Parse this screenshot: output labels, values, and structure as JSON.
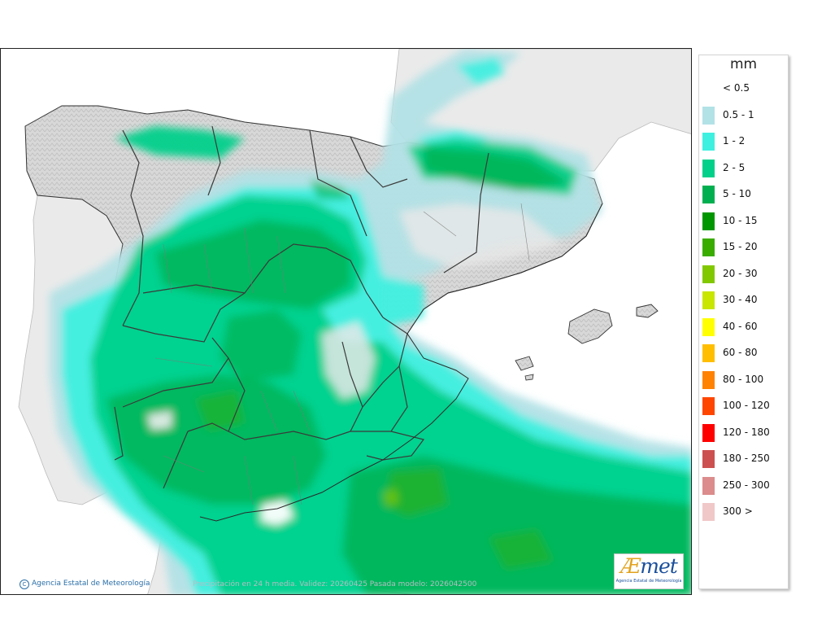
{
  "legend": {
    "unit": "mm",
    "items": [
      {
        "label": "< 0.5",
        "color": "#ffffff"
      },
      {
        "label": "0.5 - 1",
        "color": "#b2e2e6"
      },
      {
        "label": "1 - 2",
        "color": "#3ef0e0"
      },
      {
        "label": "2 - 5",
        "color": "#00d08a"
      },
      {
        "label": "5 - 10",
        "color": "#00b050"
      },
      {
        "label": "10 - 15",
        "color": "#009600"
      },
      {
        "label": "15 - 20",
        "color": "#3aac00"
      },
      {
        "label": "20 - 30",
        "color": "#82c800"
      },
      {
        "label": "30 - 40",
        "color": "#c8e600"
      },
      {
        "label": "40 - 60",
        "color": "#ffff00"
      },
      {
        "label": "60 - 80",
        "color": "#ffbe00"
      },
      {
        "label": "80 - 100",
        "color": "#ff8200"
      },
      {
        "label": "100 - 120",
        "color": "#ff4600"
      },
      {
        "label": "120 - 180",
        "color": "#ff0000"
      },
      {
        "label": "180 - 250",
        "color": "#cd5050"
      },
      {
        "label": "250 - 300",
        "color": "#dc8c8c"
      },
      {
        "label": "300 >",
        "color": "#f0c8c8"
      }
    ]
  },
  "map": {
    "credit": "Agencia Estatal de Meteorología",
    "caption": "Precipitación en 24 h media. Validez: 20260425 Pasada modelo: 2026042500",
    "colors": {
      "land": "#dcdcdc",
      "sea": "#ffffff",
      "foreign_land": "#eaeaea",
      "border": "#333333",
      "region_line": "#6b6b6b"
    }
  },
  "logo": {
    "mark": "AEmet",
    "subtitle": "Agencia Estatal de Meteorología"
  }
}
